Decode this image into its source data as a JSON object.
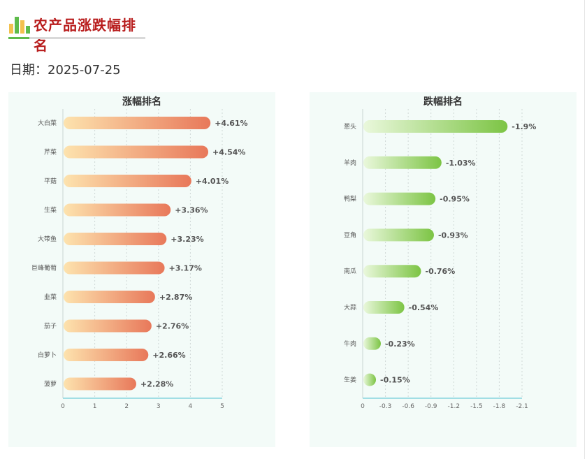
{
  "header": {
    "title": "农产品涨跌幅排名",
    "date_label": "日期：",
    "date_value": "2025-07-25"
  },
  "chart_data": [
    {
      "type": "bar",
      "orientation": "horizontal",
      "title": "涨幅排名",
      "categories": [
        "大白菜",
        "芹菜",
        "平菇",
        "生菜",
        "大带鱼",
        "巨峰葡萄",
        "韭菜",
        "茄子",
        "白萝卜",
        "菠萝"
      ],
      "values": [
        4.61,
        4.54,
        4.01,
        3.36,
        3.23,
        3.17,
        2.87,
        2.76,
        2.66,
        2.28
      ],
      "data_labels": [
        "+4.61%",
        "+4.54%",
        "+4.01%",
        "+3.36%",
        "+3.23%",
        "+3.17%",
        "+2.87%",
        "+2.76%",
        "+2.66%",
        "+2.28%"
      ],
      "x_ticks": [
        "0",
        "1",
        "2",
        "3",
        "4",
        "5"
      ],
      "xlim": [
        0,
        5
      ],
      "grid": "vertical-dashed",
      "colors": {
        "start": "#fde3ae",
        "end": "#e8785a"
      }
    },
    {
      "type": "bar",
      "orientation": "horizontal",
      "title": "跌幅排名",
      "categories": [
        "葱头",
        "羊肉",
        "鸭梨",
        "豆角",
        "南瓜",
        "大蒜",
        "牛肉",
        "生姜"
      ],
      "values": [
        -1.9,
        -1.03,
        -0.95,
        -0.93,
        -0.76,
        -0.54,
        -0.23,
        -0.15
      ],
      "data_labels": [
        "-1.9%",
        "-1.03%",
        "-0.95%",
        "-0.93%",
        "-0.76%",
        "-0.54%",
        "-0.23%",
        "-0.15%"
      ],
      "x_ticks": [
        "0",
        "-0.3",
        "-0.6",
        "-0.9",
        "-1.2",
        "-1.5",
        "-1.8",
        "-2.1"
      ],
      "xlim": [
        0,
        -2.1
      ],
      "grid": "vertical-dashed",
      "colors": {
        "start": "#eaf8dc",
        "end": "#7cc444"
      }
    }
  ]
}
